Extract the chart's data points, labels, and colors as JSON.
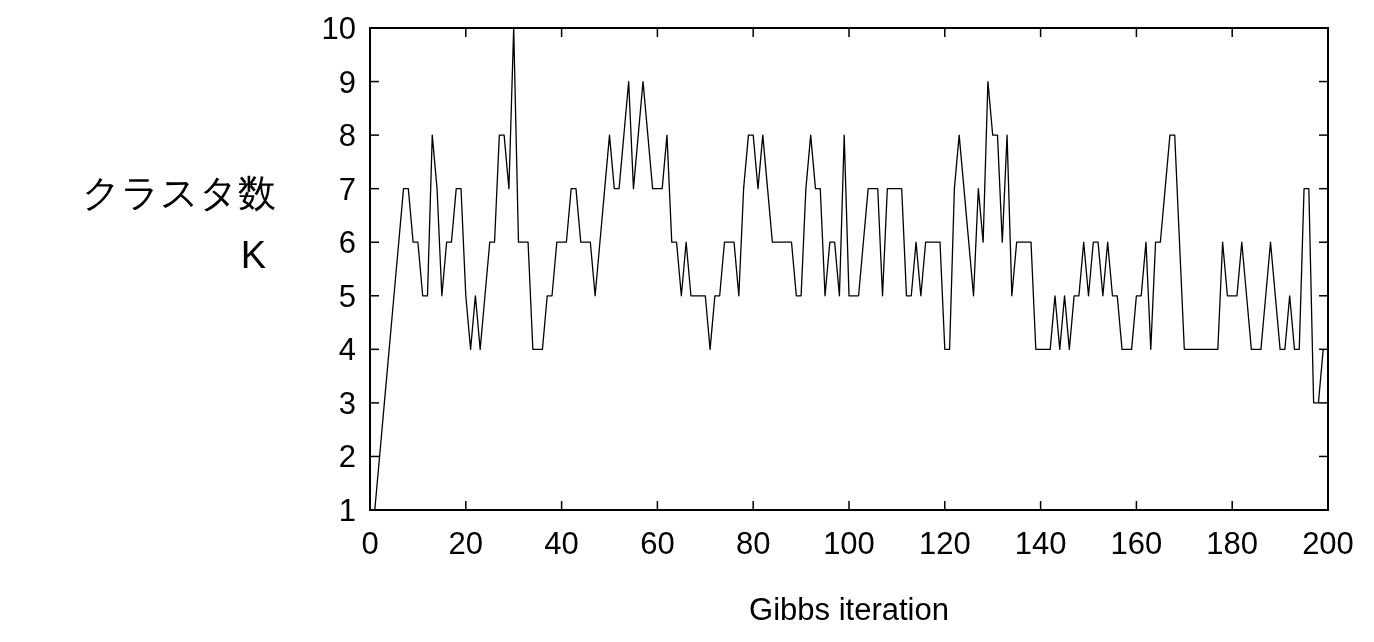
{
  "chart_data": {
    "type": "line",
    "xlabel": "Gibbs iteration",
    "ylabel": "クラスタ数 K",
    "color": "#000000",
    "x": [
      1,
      2,
      3,
      4,
      5,
      6,
      7,
      8,
      9,
      10,
      11,
      12,
      13,
      14,
      15,
      16,
      17,
      18,
      19,
      20,
      21,
      22,
      23,
      24,
      25,
      26,
      27,
      28,
      29,
      30,
      31,
      32,
      33,
      34,
      35,
      36,
      37,
      38,
      39,
      40,
      41,
      42,
      43,
      44,
      45,
      46,
      47,
      48,
      49,
      50,
      51,
      52,
      53,
      54,
      55,
      56,
      57,
      58,
      59,
      60,
      61,
      62,
      63,
      64,
      65,
      66,
      67,
      68,
      69,
      70,
      71,
      72,
      73,
      74,
      75,
      76,
      77,
      78,
      79,
      80,
      81,
      82,
      83,
      84,
      85,
      86,
      87,
      88,
      89,
      90,
      91,
      92,
      93,
      94,
      95,
      96,
      97,
      98,
      99,
      100,
      101,
      102,
      103,
      104,
      105,
      106,
      107,
      108,
      109,
      110,
      111,
      112,
      113,
      114,
      115,
      116,
      117,
      118,
      119,
      120,
      121,
      122,
      123,
      124,
      125,
      126,
      127,
      128,
      129,
      130,
      131,
      132,
      133,
      134,
      135,
      136,
      137,
      138,
      139,
      140,
      141,
      142,
      143,
      144,
      145,
      146,
      147,
      148,
      149,
      150,
      151,
      152,
      153,
      154,
      155,
      156,
      157,
      158,
      159,
      160,
      161,
      162,
      163,
      164,
      165,
      166,
      167,
      168,
      169,
      170,
      171,
      172,
      173,
      174,
      175,
      176,
      177,
      178,
      179,
      180,
      181,
      182,
      183,
      184,
      185,
      186,
      187,
      188,
      189,
      190,
      191,
      192,
      193,
      194,
      195,
      196,
      197,
      198,
      199
    ],
    "values": [
      1,
      2,
      3,
      4,
      5,
      6,
      7,
      7,
      6,
      6,
      5,
      5,
      8,
      7,
      5,
      6,
      6,
      7,
      7,
      5,
      4,
      5,
      4,
      5,
      6,
      6,
      8,
      8,
      7,
      10,
      6,
      6,
      6,
      4,
      4,
      4,
      5,
      5,
      6,
      6,
      6,
      7,
      7,
      6,
      6,
      6,
      5,
      6,
      7,
      8,
      7,
      7,
      8,
      9,
      7,
      8,
      9,
      8,
      7,
      7,
      7,
      8,
      6,
      6,
      5,
      6,
      5,
      5,
      5,
      5,
      4,
      5,
      5,
      6,
      6,
      6,
      5,
      7,
      8,
      8,
      7,
      8,
      7,
      6,
      6,
      6,
      6,
      6,
      5,
      5,
      7,
      8,
      7,
      7,
      5,
      6,
      6,
      5,
      8,
      5,
      5,
      5,
      6,
      7,
      7,
      7,
      5,
      7,
      7,
      7,
      7,
      5,
      5,
      6,
      5,
      6,
      6,
      6,
      6,
      4,
      4,
      7,
      8,
      7,
      6,
      5,
      7,
      6,
      9,
      8,
      8,
      6,
      8,
      5,
      6,
      6,
      6,
      6,
      4,
      4,
      4,
      4,
      5,
      4,
      5,
      4,
      5,
      5,
      6,
      5,
      6,
      6,
      5,
      6,
      5,
      5,
      4,
      4,
      4,
      5,
      5,
      6,
      4,
      6,
      6,
      7,
      8,
      8,
      6,
      4,
      4,
      4,
      4,
      4,
      4,
      4,
      4,
      6,
      5,
      5,
      5,
      6,
      5,
      4,
      4,
      4,
      5,
      6,
      5,
      4,
      4,
      5,
      4,
      4,
      7,
      7,
      3,
      3,
      4
    ],
    "xlim": [
      0,
      200
    ],
    "ylim": [
      1,
      10
    ],
    "xticks": [
      0,
      20,
      40,
      60,
      80,
      100,
      120,
      140,
      160,
      180,
      200
    ],
    "yticks": [
      1,
      2,
      3,
      4,
      5,
      6,
      7,
      8,
      9,
      10
    ]
  }
}
